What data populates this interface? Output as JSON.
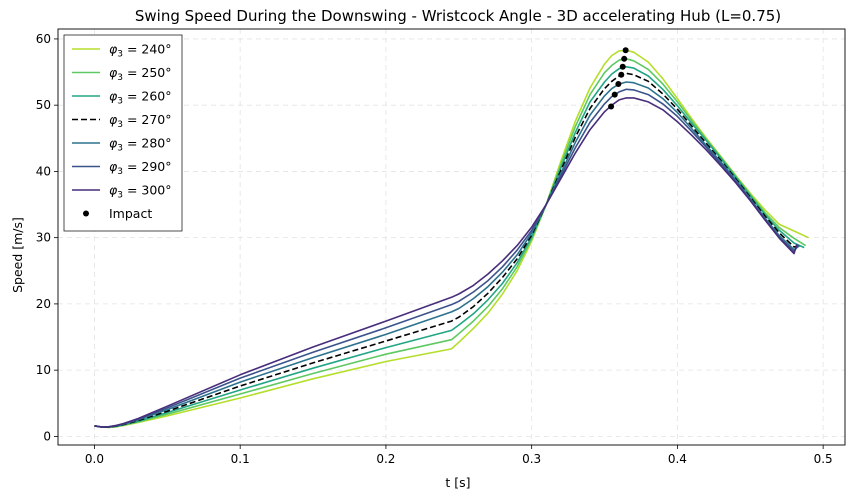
{
  "chart_data": {
    "type": "line",
    "title": "Swing Speed During the Downswing - Wristcock Angle - 3D accelerating Hub (L=0.75)",
    "xlabel": "t [s]",
    "ylabel": "Speed [m/s]",
    "xlim": [
      -0.025,
      0.515
    ],
    "ylim": [
      -1.3,
      61.5
    ],
    "xticks": [
      0.0,
      0.1,
      0.2,
      0.3,
      0.4,
      0.5
    ],
    "xtick_labels": [
      "0.0",
      "0.1",
      "0.2",
      "0.3",
      "0.4",
      "0.5"
    ],
    "yticks": [
      0,
      10,
      20,
      30,
      40,
      50,
      60
    ],
    "ytick_labels": [
      "0",
      "10",
      "20",
      "30",
      "40",
      "50",
      "60"
    ],
    "grid": true,
    "legend_position": "upper-left",
    "series": [
      {
        "name": "φ3 = 240°",
        "legend_var": "φ",
        "legend_sub": "3",
        "legend_rest": " = 240°",
        "color": "#b5de2b",
        "dash": "solid",
        "x": [
          0.0,
          0.005,
          0.01,
          0.015,
          0.02,
          0.03,
          0.05,
          0.1,
          0.15,
          0.2,
          0.245,
          0.25,
          0.26,
          0.27,
          0.28,
          0.29,
          0.3,
          0.31,
          0.32,
          0.33,
          0.34,
          0.35,
          0.355,
          0.36,
          0.365,
          0.37,
          0.38,
          0.39,
          0.4,
          0.41,
          0.42,
          0.43,
          0.44,
          0.45,
          0.46,
          0.47,
          0.48,
          0.49
        ],
        "y": [
          1.6,
          1.4,
          1.35,
          1.45,
          1.65,
          2.1,
          3.1,
          5.8,
          8.7,
          11.3,
          13.2,
          14.2,
          16.3,
          18.6,
          21.5,
          25.0,
          29.5,
          35.0,
          41.5,
          47.6,
          52.6,
          56.2,
          57.5,
          58.2,
          58.3,
          58.0,
          56.5,
          54.0,
          51.0,
          47.9,
          45.0,
          42.2,
          39.4,
          36.7,
          34.2,
          32.0,
          31.0,
          30.0
        ]
      },
      {
        "name": "φ3 = 250°",
        "legend_var": "φ",
        "legend_sub": "3",
        "legend_rest": " = 250°",
        "color": "#5ec962",
        "dash": "solid",
        "x": [
          0.0,
          0.005,
          0.01,
          0.015,
          0.02,
          0.03,
          0.05,
          0.1,
          0.15,
          0.2,
          0.245,
          0.25,
          0.26,
          0.27,
          0.28,
          0.29,
          0.3,
          0.31,
          0.32,
          0.33,
          0.34,
          0.35,
          0.355,
          0.36,
          0.365,
          0.37,
          0.38,
          0.39,
          0.4,
          0.41,
          0.42,
          0.43,
          0.44,
          0.45,
          0.46,
          0.47,
          0.48,
          0.488
        ],
        "y": [
          1.6,
          1.4,
          1.37,
          1.5,
          1.7,
          2.2,
          3.35,
          6.4,
          9.5,
          12.4,
          14.6,
          15.5,
          17.4,
          19.6,
          22.3,
          25.6,
          29.8,
          35.0,
          41.0,
          46.8,
          51.6,
          54.9,
          56.0,
          56.8,
          57.0,
          56.7,
          55.4,
          53.2,
          50.5,
          47.6,
          44.8,
          42.1,
          39.3,
          36.5,
          33.8,
          31.5,
          29.9,
          28.8
        ]
      },
      {
        "name": "φ3 = 260°",
        "legend_var": "φ",
        "legend_sub": "3",
        "legend_rest": " = 260°",
        "color": "#21a585",
        "dash": "solid",
        "x": [
          0.0,
          0.005,
          0.01,
          0.015,
          0.02,
          0.03,
          0.05,
          0.1,
          0.15,
          0.2,
          0.245,
          0.25,
          0.26,
          0.27,
          0.28,
          0.29,
          0.3,
          0.31,
          0.32,
          0.33,
          0.34,
          0.35,
          0.355,
          0.36,
          0.365,
          0.37,
          0.38,
          0.39,
          0.4,
          0.41,
          0.42,
          0.43,
          0.44,
          0.45,
          0.46,
          0.47,
          0.48,
          0.487
        ],
        "y": [
          1.6,
          1.4,
          1.38,
          1.52,
          1.75,
          2.3,
          3.6,
          7.0,
          10.3,
          13.4,
          16.0,
          16.8,
          18.5,
          20.6,
          23.1,
          26.2,
          30.1,
          35.0,
          40.5,
          45.9,
          50.5,
          53.5,
          54.7,
          55.5,
          55.8,
          55.6,
          54.4,
          52.4,
          49.9,
          47.2,
          44.6,
          41.9,
          39.1,
          36.3,
          33.5,
          31.1,
          29.2,
          28.5
        ]
      },
      {
        "name": "φ3 = 270°",
        "legend_var": "φ",
        "legend_sub": "3",
        "legend_rest": " = 270°",
        "color": "#000000",
        "dash": "dashed",
        "x": [
          0.0,
          0.005,
          0.01,
          0.015,
          0.02,
          0.03,
          0.05,
          0.1,
          0.15,
          0.2,
          0.245,
          0.25,
          0.26,
          0.27,
          0.28,
          0.29,
          0.3,
          0.31,
          0.32,
          0.33,
          0.34,
          0.35,
          0.355,
          0.36,
          0.365,
          0.37,
          0.38,
          0.39,
          0.4,
          0.41,
          0.42,
          0.43,
          0.44,
          0.45,
          0.46,
          0.47,
          0.48,
          0.485
        ],
        "y": [
          1.6,
          1.4,
          1.4,
          1.55,
          1.8,
          2.4,
          3.8,
          7.6,
          11.1,
          14.4,
          17.4,
          18.0,
          19.6,
          21.6,
          24.0,
          26.8,
          30.4,
          35.0,
          40.1,
          45.2,
          49.5,
          52.5,
          53.6,
          54.4,
          54.8,
          54.6,
          53.6,
          51.7,
          49.4,
          46.8,
          44.2,
          41.6,
          38.9,
          36.1,
          33.3,
          30.7,
          28.6,
          28.8
        ]
      },
      {
        "name": "φ3 = 280°",
        "legend_var": "φ",
        "legend_sub": "3",
        "legend_rest": " = 280°",
        "color": "#2c728e",
        "dash": "solid",
        "x": [
          0.0,
          0.005,
          0.01,
          0.015,
          0.02,
          0.03,
          0.05,
          0.1,
          0.15,
          0.2,
          0.245,
          0.25,
          0.26,
          0.27,
          0.28,
          0.29,
          0.3,
          0.31,
          0.32,
          0.33,
          0.34,
          0.35,
          0.355,
          0.36,
          0.365,
          0.37,
          0.38,
          0.39,
          0.4,
          0.41,
          0.42,
          0.43,
          0.44,
          0.45,
          0.46,
          0.47,
          0.48,
          0.484
        ],
        "y": [
          1.6,
          1.4,
          1.42,
          1.6,
          1.85,
          2.5,
          4.05,
          8.2,
          11.9,
          15.4,
          18.8,
          19.3,
          20.8,
          22.6,
          24.8,
          27.4,
          30.7,
          35.0,
          39.7,
          44.4,
          48.5,
          51.4,
          52.5,
          53.2,
          53.5,
          53.4,
          52.6,
          51.0,
          48.9,
          46.4,
          43.9,
          41.4,
          38.7,
          35.9,
          33.0,
          30.3,
          28.2,
          28.8
        ]
      },
      {
        "name": "φ3 = 290°",
        "legend_var": "φ",
        "legend_sub": "3",
        "legend_rest": " = 290°",
        "color": "#3b528b",
        "dash": "solid",
        "x": [
          0.0,
          0.005,
          0.01,
          0.015,
          0.02,
          0.03,
          0.05,
          0.1,
          0.15,
          0.2,
          0.245,
          0.25,
          0.26,
          0.27,
          0.28,
          0.29,
          0.3,
          0.31,
          0.32,
          0.33,
          0.34,
          0.35,
          0.355,
          0.36,
          0.365,
          0.37,
          0.38,
          0.39,
          0.4,
          0.41,
          0.42,
          0.43,
          0.44,
          0.45,
          0.46,
          0.47,
          0.48,
          0.483
        ],
        "y": [
          1.6,
          1.4,
          1.44,
          1.63,
          1.9,
          2.6,
          4.3,
          8.8,
          12.7,
          16.4,
          19.9,
          20.4,
          21.8,
          23.5,
          25.6,
          28.1,
          31.1,
          35.0,
          39.3,
          43.6,
          47.4,
          50.2,
          51.3,
          52.0,
          52.4,
          52.3,
          51.6,
          50.2,
          48.3,
          46.0,
          43.6,
          41.1,
          38.5,
          35.7,
          32.8,
          30.0,
          27.9,
          28.9
        ]
      },
      {
        "name": "φ3 = 300°",
        "legend_var": "φ",
        "legend_sub": "3",
        "legend_rest": " = 300°",
        "color": "#472d7b",
        "dash": "solid",
        "x": [
          0.0,
          0.005,
          0.01,
          0.015,
          0.02,
          0.03,
          0.05,
          0.1,
          0.15,
          0.2,
          0.245,
          0.25,
          0.26,
          0.27,
          0.28,
          0.29,
          0.3,
          0.31,
          0.32,
          0.33,
          0.34,
          0.35,
          0.355,
          0.36,
          0.365,
          0.37,
          0.38,
          0.39,
          0.4,
          0.41,
          0.42,
          0.43,
          0.44,
          0.45,
          0.46,
          0.47,
          0.48,
          0.482
        ],
        "y": [
          1.6,
          1.4,
          1.46,
          1.66,
          1.95,
          2.7,
          4.55,
          9.3,
          13.5,
          17.4,
          21.0,
          21.5,
          22.8,
          24.5,
          26.5,
          28.8,
          31.6,
          35.0,
          38.9,
          42.8,
          46.3,
          49.0,
          50.0,
          50.8,
          51.1,
          51.1,
          50.5,
          49.3,
          47.5,
          45.4,
          43.2,
          40.8,
          38.3,
          35.6,
          32.7,
          29.9,
          27.6,
          29.0
        ]
      }
    ],
    "impact": {
      "name": "Impact",
      "color": "#000000",
      "x": [
        0.3645,
        0.3635,
        0.3625,
        0.3615,
        0.3595,
        0.357,
        0.3545
      ],
      "y": [
        58.3,
        57.0,
        55.8,
        54.6,
        53.2,
        51.6,
        49.8
      ]
    }
  }
}
